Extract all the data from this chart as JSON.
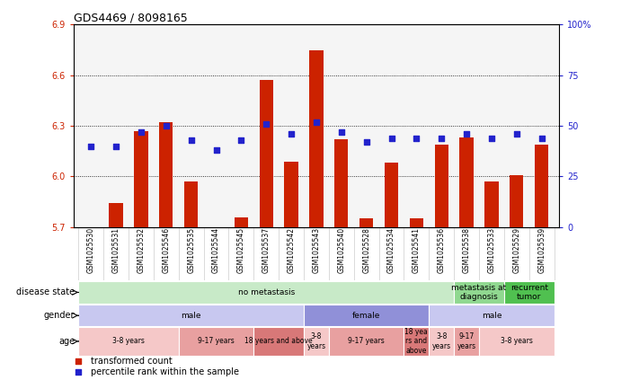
{
  "title": "GDS4469 / 8098165",
  "samples": [
    "GSM1025530",
    "GSM1025531",
    "GSM1025532",
    "GSM1025546",
    "GSM1025535",
    "GSM1025544",
    "GSM1025545",
    "GSM1025537",
    "GSM1025542",
    "GSM1025543",
    "GSM1025540",
    "GSM1025528",
    "GSM1025534",
    "GSM1025541",
    "GSM1025536",
    "GSM1025538",
    "GSM1025533",
    "GSM1025529",
    "GSM1025539"
  ],
  "bar_values": [
    5.7,
    5.84,
    6.27,
    6.32,
    5.97,
    5.7,
    5.76,
    6.57,
    6.09,
    6.75,
    6.22,
    5.75,
    6.08,
    5.75,
    6.19,
    6.23,
    5.97,
    6.01,
    6.19
  ],
  "dot_values": [
    40,
    40,
    47,
    50,
    43,
    38,
    43,
    51,
    46,
    52,
    47,
    42,
    44,
    44,
    44,
    46,
    44,
    46,
    44
  ],
  "ymin": 5.7,
  "ymax": 6.9,
  "yticks_left": [
    5.7,
    6.0,
    6.3,
    6.6,
    6.9
  ],
  "yticks_right": [
    0,
    25,
    50,
    75,
    100
  ],
  "bar_color": "#cc2200",
  "dot_color": "#2222cc",
  "bg_color": "#ffffff",
  "plot_bg": "#f5f5f5",
  "disease_state_groups": [
    {
      "label": "no metastasis",
      "start": 0,
      "end": 15,
      "color": "#c8eac8"
    },
    {
      "label": "metastasis at\ndiagnosis",
      "start": 15,
      "end": 17,
      "color": "#90d890"
    },
    {
      "label": "recurrent\ntumor",
      "start": 17,
      "end": 19,
      "color": "#50c050"
    }
  ],
  "gender_groups": [
    {
      "label": "male",
      "start": 0,
      "end": 9,
      "color": "#c8c8f0"
    },
    {
      "label": "female",
      "start": 9,
      "end": 14,
      "color": "#9090d8"
    },
    {
      "label": "male",
      "start": 14,
      "end": 19,
      "color": "#c8c8f0"
    }
  ],
  "age_groups": [
    {
      "label": "3-8 years",
      "start": 0,
      "end": 4,
      "color": "#f5c8c8"
    },
    {
      "label": "9-17 years",
      "start": 4,
      "end": 7,
      "color": "#e8a0a0"
    },
    {
      "label": "18 years and above",
      "start": 7,
      "end": 9,
      "color": "#d87878"
    },
    {
      "label": "3-8\nyears",
      "start": 9,
      "end": 10,
      "color": "#f5c8c8"
    },
    {
      "label": "9-17 years",
      "start": 10,
      "end": 13,
      "color": "#e8a0a0"
    },
    {
      "label": "18 yea\nrs and\nabove",
      "start": 13,
      "end": 14,
      "color": "#d87878"
    },
    {
      "label": "3-8\nyears",
      "start": 14,
      "end": 15,
      "color": "#f5c8c8"
    },
    {
      "label": "9-17\nyears",
      "start": 15,
      "end": 16,
      "color": "#e8a0a0"
    },
    {
      "label": "3-8 years",
      "start": 16,
      "end": 19,
      "color": "#f5c8c8"
    }
  ],
  "row_labels": [
    "disease state",
    "gender",
    "age"
  ],
  "legend_items": [
    {
      "label": "transformed count",
      "color": "#cc2200",
      "marker": "s"
    },
    {
      "label": "percentile rank within the sample",
      "color": "#2222cc",
      "marker": "s"
    }
  ]
}
